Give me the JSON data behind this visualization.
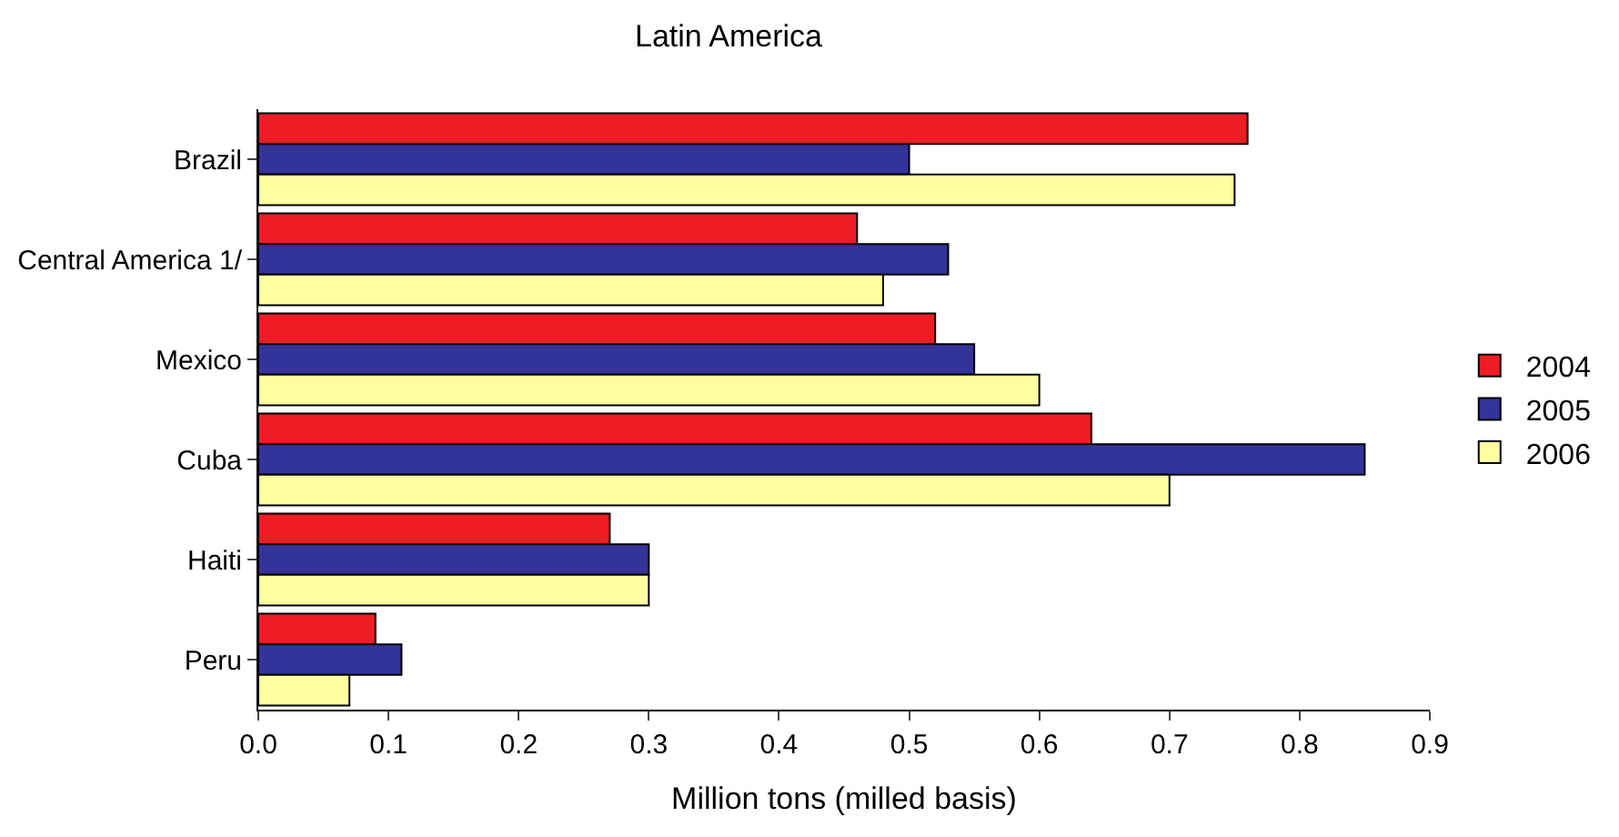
{
  "chart_data": {
    "type": "bar",
    "orientation": "horizontal",
    "title": "Latin America",
    "xlabel": "Million tons (milled basis)",
    "categories": [
      "Brazil",
      "Central America 1/",
      "Mexico",
      "Cuba",
      "Haiti",
      "Peru"
    ],
    "series": [
      {
        "name": "2004",
        "color": "#ee1c24",
        "values": [
          0.76,
          0.46,
          0.52,
          0.64,
          0.27,
          0.09
        ]
      },
      {
        "name": "2005",
        "color": "#333399",
        "values": [
          0.5,
          0.53,
          0.55,
          0.85,
          0.3,
          0.11
        ]
      },
      {
        "name": "2006",
        "color": "#ffffa0",
        "values": [
          0.75,
          0.48,
          0.6,
          0.7,
          0.3,
          0.07
        ]
      }
    ],
    "xlim": [
      0,
      0.9
    ],
    "xticks": [
      {
        "value": 0,
        "label": "0.0"
      },
      0.1,
      0.2,
      0.3,
      0.4,
      0.5,
      0.6,
      0.7,
      0.8,
      0.9
    ],
    "legend": "right"
  }
}
